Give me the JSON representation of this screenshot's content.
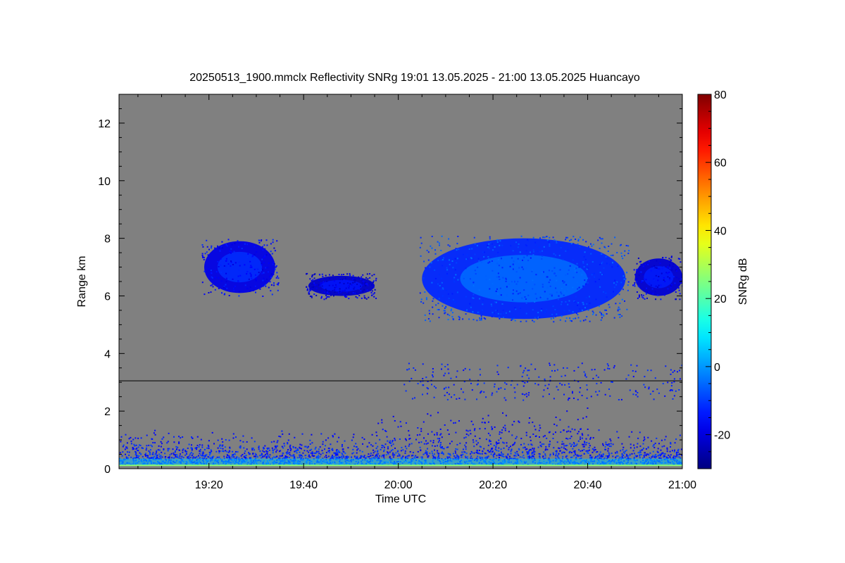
{
  "chart_data": {
    "type": "heatmap",
    "title": "20250513_1900.mmclx Reflectivity SNRg   19:01 13.05.2025 - 21:00 13.05.2025 Huancayo",
    "xlabel": "Time UTC",
    "ylabel": "Range km",
    "colorbar_label": "SNRg dB",
    "x_range": [
      "19:01",
      "21:00"
    ],
    "x_ticks": [
      "19:20",
      "19:40",
      "20:00",
      "20:20",
      "20:40",
      "21:00"
    ],
    "y_range": [
      0,
      13
    ],
    "y_ticks": [
      "0",
      "2",
      "4",
      "6",
      "8",
      "10",
      "12"
    ],
    "colorbar_range": [
      -30,
      80
    ],
    "colorbar_ticks": [
      "-20",
      "0",
      "20",
      "40",
      "60",
      "80"
    ],
    "colormap": "jet",
    "background_color": "#808080",
    "reference_line_km": 3.05,
    "features": [
      {
        "name": "cloud layer",
        "start": "19:19",
        "end": "19:34",
        "range_km": [
          6.1,
          7.9
        ],
        "snr_db": -15
      },
      {
        "name": "cloud layer",
        "start": "19:41",
        "end": "19:55",
        "range_km": [
          6.0,
          6.7
        ],
        "snr_db": -18
      },
      {
        "name": "cloud layer",
        "start": "20:05",
        "end": "20:48",
        "range_km": [
          5.2,
          8.0
        ],
        "snr_db": -8
      },
      {
        "name": "cloud layer",
        "start": "20:50",
        "end": "21:00",
        "range_km": [
          6.0,
          7.3
        ],
        "snr_db": -17
      },
      {
        "name": "boundary layer echoes",
        "start": "19:01",
        "end": "21:00",
        "range_km": [
          0.1,
          2.0
        ],
        "snr_db": -12
      }
    ]
  }
}
